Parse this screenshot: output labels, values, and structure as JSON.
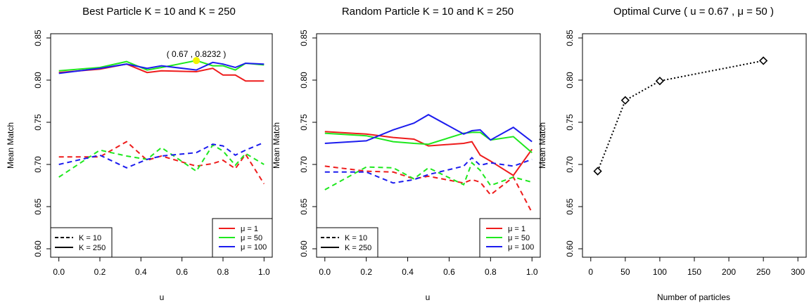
{
  "chart_data": [
    {
      "type": "line",
      "title": "Best Particle  K  =  10   and   K  =  250",
      "xlabel": "u",
      "ylabel": "Mean Match",
      "xlim": [
        -0.04,
        1.04
      ],
      "ylim": [
        0.59,
        0.855
      ],
      "x_ticks": [
        "0.0",
        "0.2",
        "0.4",
        "0.6",
        "0.8",
        "1.0"
      ],
      "y_ticks": [
        "0.60",
        "0.65",
        "0.70",
        "0.75",
        "0.80",
        "0.85"
      ],
      "grid": false,
      "legend_linetype": {
        "position": "bottom-left",
        "entries": [
          {
            "label": "K  =  10",
            "dash": "dashed"
          },
          {
            "label": "K  =  250",
            "dash": "solid"
          }
        ]
      },
      "legend_color": {
        "position": "bottom-right",
        "entries": [
          {
            "label": "μ  =  1",
            "color": "#ee1c1c"
          },
          {
            "label": "μ  =  50",
            "color": "#1ee81e"
          },
          {
            "label": "μ  =  100",
            "color": "#1c1cee"
          }
        ]
      },
      "annotation": {
        "text": "( 0.67 , 0.8232 )",
        "x": 0.67,
        "y": 0.8232,
        "marker_color": "#f2f200"
      },
      "series": [
        {
          "name": "K = 250, μ = 1",
          "color": "#ee1c1c",
          "dash": "solid",
          "x": [
            0,
            0.2,
            0.33,
            0.43,
            0.5,
            0.67,
            0.75,
            0.8,
            0.86,
            0.91,
            1.0
          ],
          "values": [
            0.809,
            0.813,
            0.819,
            0.809,
            0.811,
            0.81,
            0.814,
            0.806,
            0.806,
            0.799,
            0.799
          ]
        },
        {
          "name": "K = 250, μ = 50",
          "color": "#1ee81e",
          "dash": "solid",
          "x": [
            0,
            0.2,
            0.33,
            0.43,
            0.5,
            0.67,
            0.75,
            0.8,
            0.86,
            0.91,
            1.0
          ],
          "values": [
            0.811,
            0.815,
            0.822,
            0.812,
            0.815,
            0.8232,
            0.817,
            0.817,
            0.812,
            0.82,
            0.818
          ]
        },
        {
          "name": "K = 250, μ = 100",
          "color": "#1c1cee",
          "dash": "solid",
          "x": [
            0,
            0.2,
            0.33,
            0.43,
            0.5,
            0.67,
            0.75,
            0.8,
            0.86,
            0.91,
            1.0
          ],
          "values": [
            0.808,
            0.814,
            0.819,
            0.814,
            0.817,
            0.812,
            0.821,
            0.819,
            0.815,
            0.82,
            0.819
          ]
        },
        {
          "name": "K = 10, μ = 1",
          "color": "#ee1c1c",
          "dash": "dashed",
          "x": [
            0,
            0.2,
            0.33,
            0.43,
            0.5,
            0.67,
            0.75,
            0.8,
            0.86,
            0.91,
            1.0
          ],
          "values": [
            0.709,
            0.709,
            0.727,
            0.705,
            0.71,
            0.698,
            0.701,
            0.705,
            0.695,
            0.712,
            0.677
          ]
        },
        {
          "name": "K = 10, μ = 50",
          "color": "#1ee81e",
          "dash": "dashed",
          "x": [
            0,
            0.2,
            0.33,
            0.43,
            0.5,
            0.67,
            0.75,
            0.8,
            0.86,
            0.91,
            1.0
          ],
          "values": [
            0.685,
            0.717,
            0.71,
            0.706,
            0.72,
            0.692,
            0.723,
            0.716,
            0.699,
            0.713,
            0.7
          ]
        },
        {
          "name": "K = 10, μ = 100",
          "color": "#1c1cee",
          "dash": "dashed",
          "x": [
            0,
            0.2,
            0.33,
            0.43,
            0.5,
            0.67,
            0.75,
            0.8,
            0.86,
            0.91,
            1.0
          ],
          "values": [
            0.7,
            0.711,
            0.696,
            0.706,
            0.71,
            0.714,
            0.724,
            0.722,
            0.711,
            0.717,
            0.726
          ]
        }
      ]
    },
    {
      "type": "line",
      "title": "Random Particle  K  =  10   and   K  =  250",
      "xlabel": "u",
      "ylabel": "Mean Match",
      "xlim": [
        -0.04,
        1.04
      ],
      "ylim": [
        0.59,
        0.855
      ],
      "x_ticks": [
        "0.0",
        "0.2",
        "0.4",
        "0.6",
        "0.8",
        "1.0"
      ],
      "y_ticks": [
        "0.60",
        "0.65",
        "0.70",
        "0.75",
        "0.80",
        "0.85"
      ],
      "grid": false,
      "legend_linetype": {
        "position": "bottom-left",
        "entries": [
          {
            "label": "K  =  10",
            "dash": "dashed"
          },
          {
            "label": "K  =  250",
            "dash": "solid"
          }
        ]
      },
      "legend_color": {
        "position": "bottom-right",
        "entries": [
          {
            "label": "μ  =  1",
            "color": "#ee1c1c"
          },
          {
            "label": "μ  =  50",
            "color": "#1ee81e"
          },
          {
            "label": "μ  =  100",
            "color": "#1c1cee"
          }
        ]
      },
      "series": [
        {
          "name": "K = 250, μ = 1",
          "color": "#ee1c1c",
          "dash": "solid",
          "x": [
            0,
            0.2,
            0.33,
            0.43,
            0.5,
            0.67,
            0.71,
            0.75,
            0.8,
            0.91,
            1.0
          ],
          "values": [
            0.739,
            0.736,
            0.732,
            0.73,
            0.722,
            0.725,
            0.727,
            0.711,
            0.704,
            0.687,
            0.718
          ]
        },
        {
          "name": "K = 250, μ = 50",
          "color": "#1ee81e",
          "dash": "solid",
          "x": [
            0,
            0.2,
            0.33,
            0.43,
            0.5,
            0.67,
            0.71,
            0.75,
            0.8,
            0.91,
            1.0
          ],
          "values": [
            0.737,
            0.734,
            0.727,
            0.725,
            0.724,
            0.737,
            0.738,
            0.738,
            0.729,
            0.733,
            0.714
          ]
        },
        {
          "name": "K = 250, μ = 100",
          "color": "#1c1cee",
          "dash": "solid",
          "x": [
            0,
            0.2,
            0.33,
            0.43,
            0.5,
            0.67,
            0.71,
            0.75,
            0.8,
            0.91,
            1.0
          ],
          "values": [
            0.725,
            0.728,
            0.741,
            0.749,
            0.759,
            0.736,
            0.74,
            0.741,
            0.729,
            0.744,
            0.727
          ]
        },
        {
          "name": "K = 10, μ = 1",
          "color": "#ee1c1c",
          "dash": "dashed",
          "x": [
            0,
            0.2,
            0.33,
            0.43,
            0.5,
            0.67,
            0.71,
            0.75,
            0.8,
            0.91,
            1.0
          ],
          "values": [
            0.698,
            0.692,
            0.691,
            0.683,
            0.686,
            0.678,
            0.682,
            0.679,
            0.664,
            0.685,
            0.643
          ]
        },
        {
          "name": "K = 10, μ = 50",
          "color": "#1ee81e",
          "dash": "dashed",
          "x": [
            0,
            0.2,
            0.33,
            0.43,
            0.5,
            0.67,
            0.71,
            0.75,
            0.8,
            0.91,
            1.0
          ],
          "values": [
            0.67,
            0.697,
            0.696,
            0.683,
            0.696,
            0.676,
            0.702,
            0.693,
            0.675,
            0.685,
            0.679
          ]
        },
        {
          "name": "K = 10, μ = 100",
          "color": "#1c1cee",
          "dash": "dashed",
          "x": [
            0,
            0.2,
            0.33,
            0.43,
            0.5,
            0.67,
            0.71,
            0.75,
            0.8,
            0.91,
            1.0
          ],
          "values": [
            0.691,
            0.691,
            0.678,
            0.682,
            0.688,
            0.698,
            0.708,
            0.699,
            0.702,
            0.698,
            0.706
          ]
        }
      ]
    },
    {
      "type": "line",
      "title": "Optimal Curve (  u  =  0.67  ,  μ  =  50  )",
      "xlabel": "Number of particles",
      "ylabel": "Mean Match",
      "xlim": [
        -12,
        312
      ],
      "ylim": [
        0.59,
        0.855
      ],
      "x_ticks": [
        "0",
        "50",
        "100",
        "150",
        "200",
        "250",
        "300"
      ],
      "y_ticks": [
        "0.60",
        "0.65",
        "0.70",
        "0.75",
        "0.80",
        "0.85"
      ],
      "grid": false,
      "series": [
        {
          "color": "#000000",
          "dash": "dotted",
          "marker": "diamond",
          "x": [
            10,
            50,
            100,
            250
          ],
          "values": [
            0.692,
            0.776,
            0.799,
            0.823
          ]
        }
      ]
    }
  ]
}
